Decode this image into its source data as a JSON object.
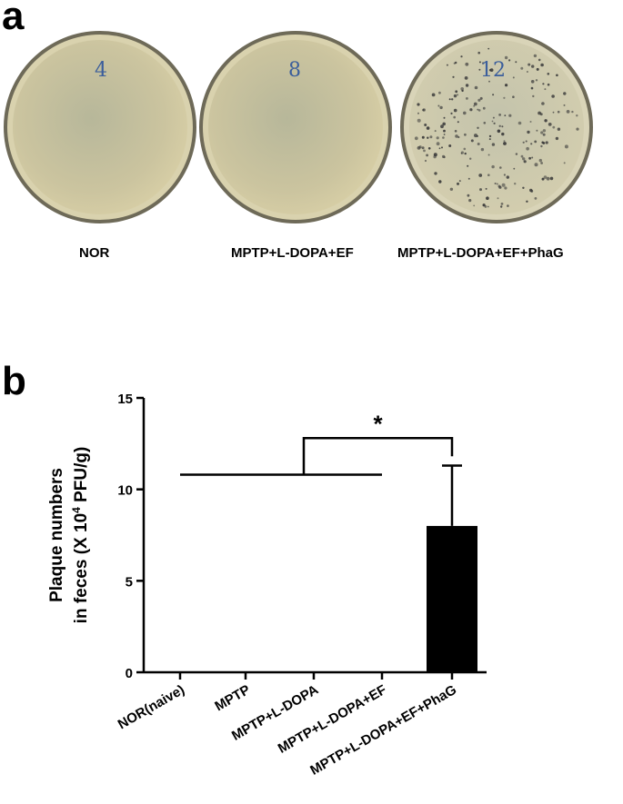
{
  "panels": {
    "a": "a",
    "b": "b"
  },
  "plates": [
    {
      "caption": "NOR",
      "handwritten": "4"
    },
    {
      "caption": "MPTP+L-DOPA+EF",
      "handwritten": "8"
    },
    {
      "caption": "MPTP+L-DOPA+EF+PhaG",
      "handwritten": "12"
    }
  ],
  "colors": {
    "plate_agar": "#cfc7a0",
    "plate_rim": "#8c8770",
    "bar": "#000000",
    "plaque": "#3a3a3a"
  },
  "chart_data": {
    "type": "bar",
    "ylabel_line1": "Plaque numbers",
    "ylabel_line2_pre": "in feces (X 10",
    "ylabel_sup": "4",
    "ylabel_line2_post": " PFU/g)",
    "ylim": [
      0,
      15
    ],
    "yticks": [
      "0",
      "5",
      "10",
      "15"
    ],
    "ytick_values": [
      0,
      5,
      10,
      15
    ],
    "categories": [
      "NOR(naive)",
      "MPTP",
      "MPTP+L-DOPA",
      "MPTP+L-DOPA+EF",
      "MPTP+L-DOPA+EF+PhaG"
    ],
    "values": [
      0,
      0,
      0,
      0,
      8.0
    ],
    "error": [
      0,
      0,
      0,
      0,
      3.3
    ],
    "significance": {
      "label": "*",
      "bracket_level": 12.8,
      "group_line_level": 10.8
    },
    "grid": false
  }
}
